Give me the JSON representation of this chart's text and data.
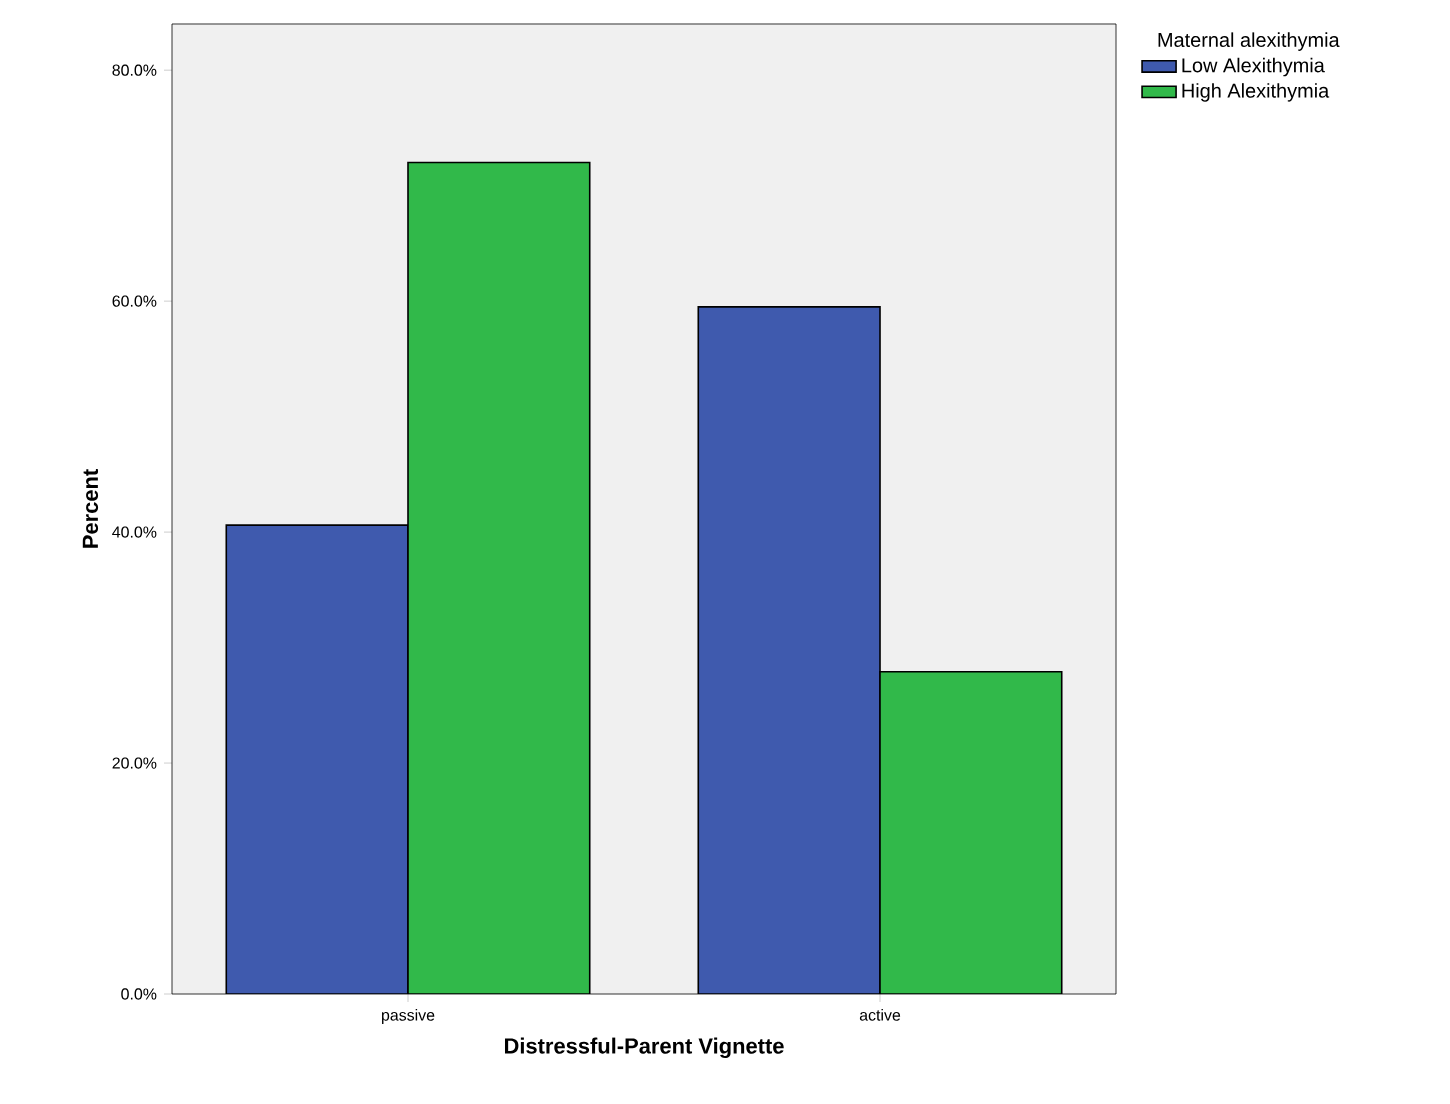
{
  "chart_data": {
    "type": "bar",
    "xlabel": "Distressful-Parent Vignette",
    "ylabel": "Percent",
    "legend_title": "Maternal alexithymia",
    "categories": [
      "passive",
      "active"
    ],
    "series": [
      {
        "name": "Low Alexithymia",
        "color": "#3f5aae",
        "values": [
          40.6,
          59.5
        ]
      },
      {
        "name": "High Alexithymia",
        "color": "#31b94a",
        "values": [
          72.0,
          27.9
        ]
      }
    ],
    "ylim": [
      0,
      84
    ],
    "yticks": [
      {
        "value": 0,
        "label": "0.0%"
      },
      {
        "value": 20,
        "label": "20.0%"
      },
      {
        "value": 40,
        "label": "40.0%"
      },
      {
        "value": 60,
        "label": "60.0%"
      },
      {
        "value": 80,
        "label": "80.0%"
      }
    ],
    "legend": "top right",
    "grid": false
  }
}
